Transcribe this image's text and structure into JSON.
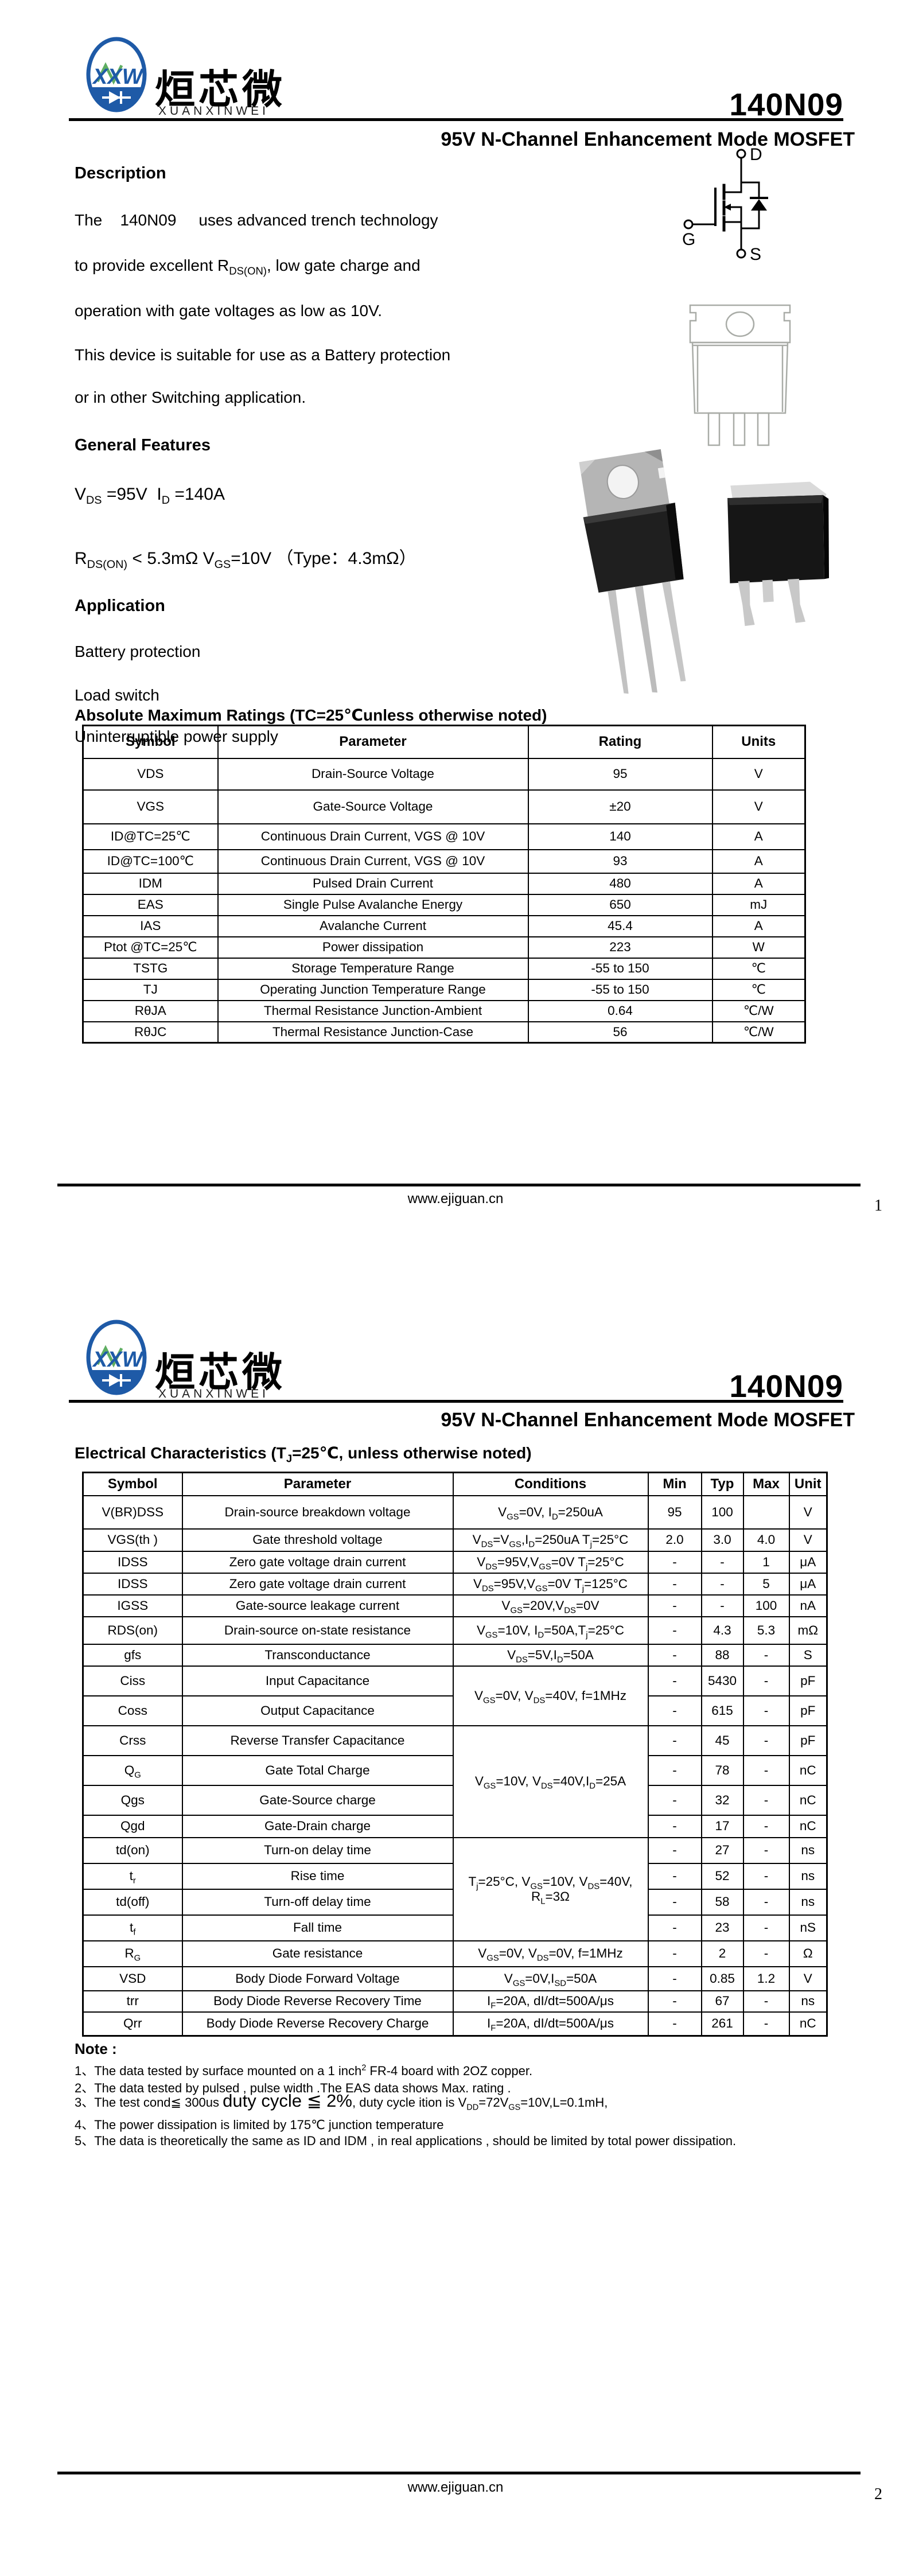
{
  "brand": {
    "logo_monogram": "XXW",
    "name_cn": "烜芯微",
    "name_en": "XUANXINWEI"
  },
  "doc": {
    "part_number": "140N09",
    "subtitle": "95V N-Channel Enhancement Mode MOSFET",
    "footer_url": "www.ejiguan.cn",
    "page1_number": "1",
    "page2_number": "2"
  },
  "page1": {
    "description": {
      "heading": "Description",
      "lines": [
        "The    140N09     uses advanced trench technology",
        "to provide excellent R_{DS(ON)}, low gate charge and",
        "operation with gate voltages as low as 10V.",
        "This device is suitable for use as a Battery protection",
        "or in other Switching application."
      ]
    },
    "general_features": {
      "heading": "General Features",
      "lines": [
        "V_{DS} =95V  I_{D} =140A",
        "R_{DS(ON)} < 5.3mΩ V_{GS}=10V （Type：4.3mΩ）"
      ]
    },
    "application": {
      "heading": "Application",
      "items": [
        "Battery protection",
        "Load switch",
        "Uninterruptible power supply"
      ]
    },
    "mosfet_symbol": {
      "drain": "D",
      "gate": "G",
      "source": "S"
    },
    "amr": {
      "title": "Absolute Maximum Ratings (TC=25℃unless otherwise noted)",
      "headers": [
        "Symbol",
        "Parameter",
        "Rating",
        "Units"
      ],
      "rows": [
        [
          "VDS",
          "Drain-Source Voltage",
          "95",
          "V"
        ],
        [
          "VGS",
          "Gate-Source Voltage",
          "±20",
          "V"
        ],
        [
          "ID@TC=25℃",
          "Continuous Drain Current, VGS @ 10V",
          "140",
          "A"
        ],
        [
          "ID@TC=100℃",
          "Continuous Drain Current, VGS @ 10V",
          "93",
          "A"
        ],
        [
          "IDM",
          "Pulsed Drain Current",
          "480",
          "A"
        ],
        [
          "EAS",
          "Single Pulse Avalanche Energy",
          "650",
          "mJ"
        ],
        [
          "IAS",
          "Avalanche Current",
          "45.4",
          "A"
        ],
        [
          "Ptot @TC=25℃",
          "Power dissipation",
          "223",
          "W"
        ],
        [
          "TSTG",
          "Storage Temperature Range",
          "-55 to 150",
          "℃"
        ],
        [
          "TJ",
          "Operating Junction Temperature Range",
          "-55 to 150",
          "℃"
        ],
        [
          "RθJA",
          "Thermal Resistance Junction-Ambient",
          "0.64",
          "℃/W"
        ],
        [
          "RθJC",
          "Thermal Resistance Junction-Case",
          "56",
          "℃/W"
        ]
      ]
    }
  },
  "page2": {
    "ec": {
      "title": "Electrical Characteristics (T_{J}=25℃, unless otherwise noted)",
      "headers": [
        "Symbol",
        "Parameter",
        "Conditions",
        "Min",
        "Typ",
        "Max",
        "Unit"
      ],
      "rows": [
        {
          "symbol": "V(BR)DSS",
          "parameter": "Drain-source breakdown voltage",
          "conditions": "V_{GS}=0V, I_{D}=250uA",
          "min": "95",
          "typ": "100",
          "max": "",
          "unit": "V"
        },
        {
          "symbol": "VGS(th )",
          "parameter": "Gate threshold voltage",
          "conditions": "V_{DS}=V_{GS},I_{D}=250uA T_{j}=25°C",
          "min": "2.0",
          "typ": "3.0",
          "max": "4.0",
          "unit": "V"
        },
        {
          "symbol": "IDSS",
          "parameter": "Zero gate voltage drain current",
          "conditions": "V_{DS}=95V,V_{GS}=0V T_{j}=25°C",
          "min": "-",
          "typ": "-",
          "max": "1",
          "unit": "μA"
        },
        {
          "symbol": "IDSS",
          "parameter": "Zero gate voltage drain current",
          "conditions": "V_{DS}=95V,V_{GS}=0V T_{j}=125°C",
          "min": "-",
          "typ": "-",
          "max": "5",
          "unit": "μA"
        },
        {
          "symbol": "IGSS",
          "parameter": "Gate-source leakage current",
          "conditions": "V_{GS}=20V,V_{DS}=0V",
          "min": "-",
          "typ": "-",
          "max": "100",
          "unit": "nA"
        },
        {
          "symbol": "RDS(on)",
          "parameter": "Drain-source on-state resistance",
          "conditions": "V_{GS}=10V, I_{D}=50A,T_{j}=25°C",
          "min": "-",
          "typ": "4.3",
          "max": "5.3",
          "unit": "mΩ"
        },
        {
          "symbol": "gfs",
          "parameter": "Transconductance",
          "conditions": "V_{DS}=5V,I_{D}=50A",
          "min": "-",
          "typ": "88",
          "max": "-",
          "unit": "S"
        },
        {
          "symbol": "Ciss",
          "parameter": "Input Capacitance",
          "conditions": "V_{GS}=0V, V_{DS}=40V, f=1MHz",
          "cond_span": 2,
          "min": "-",
          "typ": "5430",
          "max": "-",
          "unit": "pF"
        },
        {
          "symbol": "Coss",
          "parameter": "Output Capacitance",
          "min": "-",
          "typ": "615",
          "max": "-",
          "unit": "pF"
        },
        {
          "symbol": "Crss",
          "parameter": "Reverse Transfer Capacitance",
          "conditions": "V_{GS}=10V, V_{DS}=40V,I_{D}=25A",
          "cond_span": 4,
          "min": "-",
          "typ": "45",
          "max": "-",
          "unit": "pF"
        },
        {
          "symbol": "Q_{G}",
          "parameter": "Gate Total Charge",
          "min": "-",
          "typ": "78",
          "max": "-",
          "unit": "nC"
        },
        {
          "symbol": "Qgs",
          "parameter": "Gate-Source charge",
          "min": "-",
          "typ": "32",
          "max": "-",
          "unit": "nC"
        },
        {
          "symbol": "Qgd",
          "parameter": "Gate-Drain charge",
          "min": "-",
          "typ": "17",
          "max": "-",
          "unit": "nC"
        },
        {
          "symbol": "td(on)",
          "parameter": "Turn-on delay time",
          "conditions": "T_{j}=25°C, V_{GS}=10V, V_{DS}=40V,\nR_{L}=3Ω",
          "cond_span": 4,
          "min": "-",
          "typ": "27",
          "max": "-",
          "unit": "ns"
        },
        {
          "symbol": "t_{r}",
          "parameter": "Rise time",
          "min": "-",
          "typ": "52",
          "max": "-",
          "unit": "ns"
        },
        {
          "symbol": "td(off)",
          "parameter": "Turn-off delay time",
          "min": "-",
          "typ": "58",
          "max": "-",
          "unit": "ns"
        },
        {
          "symbol": "t_{f}",
          "parameter": "Fall time",
          "min": "-",
          "typ": "23",
          "max": "-",
          "unit": "nS"
        },
        {
          "symbol": "R_{G}",
          "parameter": "Gate resistance",
          "conditions": "V_{GS}=0V, V_{DS}=0V, f=1MHz",
          "min": "-",
          "typ": "2",
          "max": "-",
          "unit": "Ω"
        },
        {
          "symbol": "VSD",
          "parameter": "Body Diode Forward Voltage",
          "conditions": "V_{GS}=0V,I_{SD}=50A",
          "min": "-",
          "typ": "0.85",
          "max": "1.2",
          "unit": "V"
        },
        {
          "symbol": "trr",
          "parameter": "Body Diode Reverse Recovery Time",
          "conditions": "I_{F}=20A, dI/dt=500A/μs",
          "min": "-",
          "typ": "67",
          "max": "-",
          "unit": "ns"
        },
        {
          "symbol": "Qrr",
          "parameter": "Body Diode Reverse Recovery Charge",
          "conditions": "I_{F}=20A, dI/dt=500A/μs",
          "min": "-",
          "typ": "261",
          "max": "-",
          "unit": "nC"
        }
      ]
    },
    "note": {
      "heading": "Note :",
      "items": [
        "1、The data tested by surface mounted on a 1 inch^{2} FR-4 board with 2OZ copper.",
        "2、The data tested by pulsed , pulse width .The EAS data shows Max. rating .",
        "3、The test cond≦ 300us *{duty cycle ≦ 2%}, duty cycle ition is V_{DD}=72V_{GS}=10V,L=0.1mH,",
        "4、The power dissipation is limited by 175℃ junction temperature",
        "5、The data is theoretically the same as ID and IDM , in real applications , should be limited by total power dissipation."
      ]
    }
  },
  "colors": {
    "brand_blue": "#1e5aa7",
    "brand_green": "#43a047",
    "text": "#000000"
  }
}
